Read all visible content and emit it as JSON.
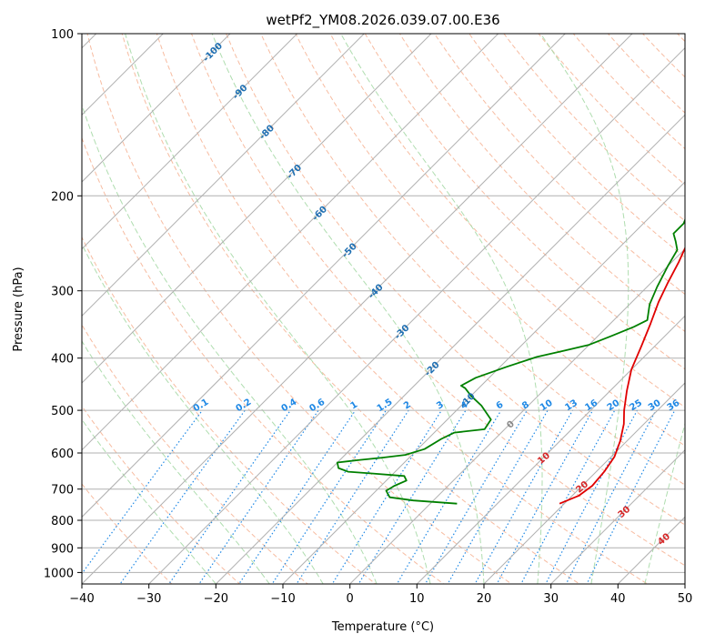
{
  "chart_data": {
    "type": "line",
    "title": "wetPf2_YM08.2026.039.07.00.E36",
    "xlabel": "Temperature (°C)",
    "ylabel": "Pressure (hPa)",
    "xlim": [
      -40,
      50
    ],
    "ylim": [
      1050,
      100
    ],
    "y_scale": "log",
    "grid": true,
    "x_ticks": [
      -40,
      -30,
      -20,
      -10,
      0,
      10,
      20,
      30,
      40,
      50
    ],
    "x_tick_labels": [
      "−40",
      "−30",
      "−20",
      "−10",
      "0",
      "10",
      "20",
      "30",
      "40",
      "50"
    ],
    "y_ticks": [
      100,
      200,
      300,
      400,
      500,
      600,
      700,
      800,
      900,
      1000
    ],
    "y_tick_labels": [
      "100",
      "200",
      "300",
      "400",
      "500",
      "600",
      "700",
      "800",
      "900",
      "1000"
    ],
    "colors": {
      "temperature": "#e00000",
      "dewpoint": "#008000",
      "isotherm": "#b0b0b0",
      "dry_adiabat": "#f4a582",
      "moist_adiabat": "#a6d9a6",
      "mixing_ratio": "#1e88e5",
      "temp_label": "#1f6fb2",
      "theta_label": "#d62728"
    },
    "series": [
      {
        "key": "temperature",
        "points": [
          [
            19.3,
            745
          ],
          [
            21,
            720
          ],
          [
            21.5,
            690
          ],
          [
            21.2,
            650
          ],
          [
            20.5,
            610
          ],
          [
            19,
            570
          ],
          [
            17,
            530
          ],
          [
            15,
            500
          ],
          [
            12.5,
            460
          ],
          [
            10,
            420
          ],
          [
            8,
            380
          ],
          [
            6,
            345
          ],
          [
            4,
            315
          ],
          [
            2.5,
            290
          ],
          [
            1,
            265
          ],
          [
            -0.5,
            245
          ],
          [
            -0.6,
            238
          ],
          [
            0.5,
            228
          ],
          [
            2,
            218
          ],
          [
            4,
            208
          ],
          [
            6,
            199
          ],
          [
            7.3,
            190
          ],
          [
            8.5,
            175
          ],
          [
            9,
            160
          ],
          [
            9.6,
            145
          ],
          [
            10.7,
            130
          ],
          [
            11.4,
            120
          ],
          [
            10.7,
            110
          ],
          [
            11.5,
            104
          ],
          [
            12,
            100
          ]
        ]
      },
      {
        "key": "dewpoint",
        "points": [
          [
            4,
            745
          ],
          [
            -3,
            735
          ],
          [
            -7,
            725
          ],
          [
            -8.5,
            705
          ],
          [
            -8,
            690
          ],
          [
            -7,
            675
          ],
          [
            -8,
            662
          ],
          [
            -13,
            655
          ],
          [
            -17,
            650
          ],
          [
            -19,
            640
          ],
          [
            -20,
            625
          ],
          [
            -17,
            618
          ],
          [
            -14,
            612
          ],
          [
            -11,
            605
          ],
          [
            -9,
            590
          ],
          [
            -8,
            565
          ],
          [
            -7,
            550
          ],
          [
            -3,
            542
          ],
          [
            -3.5,
            520
          ],
          [
            -7,
            490
          ],
          [
            -10,
            470
          ],
          [
            -12,
            455
          ],
          [
            -13,
            450
          ],
          [
            -12,
            435
          ],
          [
            -9,
            415
          ],
          [
            -6,
            398
          ],
          [
            -3,
            388
          ],
          [
            0,
            378
          ],
          [
            2,
            364
          ],
          [
            4,
            350
          ],
          [
            5,
            340
          ],
          [
            3,
            318
          ],
          [
            1.5,
            295
          ],
          [
            0,
            270
          ],
          [
            -1,
            252
          ],
          [
            -2.5,
            243
          ],
          [
            -4,
            235
          ],
          [
            -4,
            225
          ],
          [
            -6,
            205
          ],
          [
            -7,
            195
          ],
          [
            -6,
            180
          ],
          [
            -6.3,
            170
          ],
          [
            -6.8,
            158
          ],
          [
            -6.7,
            145
          ],
          [
            -6.5,
            135
          ],
          [
            -6.8,
            124
          ],
          [
            -6.5,
            115
          ],
          [
            -5.7,
            110
          ],
          [
            -4.5,
            106
          ],
          [
            -2.5,
            102
          ],
          [
            -1.5,
            100
          ]
        ]
      }
    ],
    "isotherm_labels": [
      {
        "text": "-100",
        "t": -100,
        "p": 108
      },
      {
        "text": "-90",
        "t": -90,
        "p": 128
      },
      {
        "text": "-80",
        "t": -80,
        "p": 152
      },
      {
        "text": "-70",
        "t": -70,
        "p": 180
      },
      {
        "text": "-60",
        "t": -60,
        "p": 215
      },
      {
        "text": "-50",
        "t": -50,
        "p": 252
      },
      {
        "text": "-40",
        "t": -40,
        "p": 300
      },
      {
        "text": "-30",
        "t": -30,
        "p": 357
      },
      {
        "text": "-20",
        "t": -20,
        "p": 418
      },
      {
        "text": "-10",
        "t": -10,
        "p": 478
      },
      {
        "text": "0",
        "t": 0,
        "p": 530
      }
    ],
    "theta_labels": [
      {
        "text": "10",
        "t": 10,
        "p": 612
      },
      {
        "text": "20",
        "t": 20,
        "p": 692
      },
      {
        "text": "30",
        "t": 30,
        "p": 770
      },
      {
        "text": "40",
        "t": 40,
        "p": 865
      }
    ],
    "mixing_ratio_labels": [
      "0.1",
      "0.2",
      "0.4",
      "0.6",
      "1",
      "1.5",
      "2",
      "3",
      "4",
      "6",
      "8",
      "10",
      "13",
      "16",
      "20",
      "25",
      "30",
      "36"
    ],
    "mixing_ratio_values": [
      0.1,
      0.2,
      0.4,
      0.6,
      1,
      1.5,
      2,
      3,
      4,
      6,
      8,
      10,
      13,
      16,
      20,
      25,
      30,
      36
    ],
    "mixing_ratio_label_pressure": 500,
    "dry_adiabat_thetas_c": [
      -30,
      -20,
      -10,
      0,
      10,
      20,
      30,
      40,
      50,
      60,
      70,
      80,
      90,
      100,
      110,
      120,
      130,
      140,
      150,
      160,
      170,
      180,
      190,
      200,
      210,
      220
    ],
    "moist_adiabat_start_temps_c": [
      -20,
      -12,
      -4,
      4,
      12,
      20,
      28,
      36,
      44
    ]
  }
}
